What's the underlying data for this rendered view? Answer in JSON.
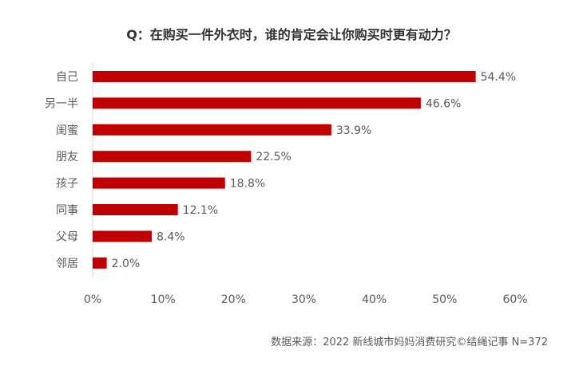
{
  "chart_data": {
    "type": "bar",
    "orientation": "horizontal",
    "title": "Q：在购买一件外衣时，谁的肯定会让你购买时更有动力？",
    "categories": [
      "自己",
      "另一半",
      "闺蜜",
      "朋友",
      "孩子",
      "同事",
      "父母",
      "邻居"
    ],
    "values": [
      54.4,
      46.6,
      33.9,
      22.5,
      18.8,
      12.1,
      8.4,
      2.0
    ],
    "data_labels": [
      "54.4%",
      "46.6%",
      "33.9%",
      "22.5%",
      "18.8%",
      "12.1%",
      "8.4%",
      "2.0%"
    ],
    "xlim": [
      0,
      60
    ],
    "xticks": [
      "0%",
      "10%",
      "20%",
      "30%",
      "40%",
      "50%",
      "60%"
    ],
    "grid": false,
    "legend": "none",
    "bar_color": "#C00000"
  },
  "source": "数据来源：2022 新线城市妈妈消费研究©结绳记事 N=372"
}
